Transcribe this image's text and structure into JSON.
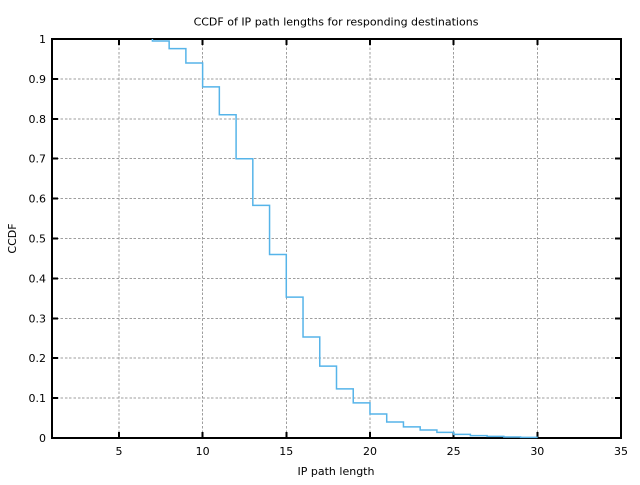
{
  "chart_data": {
    "type": "line",
    "subtype": "ccdf-step",
    "title": "CCDF of IP path lengths for responding destinations",
    "xlabel": "IP path length",
    "ylabel": "CCDF",
    "xlim": [
      1,
      35
    ],
    "ylim": [
      0,
      1
    ],
    "xticks": [
      5,
      10,
      15,
      20,
      25,
      30,
      35
    ],
    "yticks": [
      0,
      0.1,
      0.2,
      0.3,
      0.4,
      0.5,
      0.6,
      0.7,
      0.8,
      0.9,
      1
    ],
    "ytick_labels": [
      "0",
      "0.1",
      "0.2",
      "0.3",
      "0.4",
      "0.5",
      "0.6",
      "0.7",
      "0.8",
      "0.9",
      "1"
    ],
    "grid": true,
    "legend": "none",
    "line_color": "#56b4e9",
    "grid_color": "#9e9e9e",
    "axis_color": "#000000",
    "series": [
      {
        "name": "CCDF of IP path lengths",
        "start": [
          7,
          1.0
        ],
        "x": [
          7,
          8,
          9,
          10,
          11,
          12,
          13,
          14,
          15,
          16,
          17,
          18,
          19,
          20,
          21,
          22,
          23,
          24,
          25,
          26,
          27,
          28,
          29,
          30
        ],
        "ccdf": [
          0.995,
          0.976,
          0.94,
          0.88,
          0.81,
          0.7,
          0.583,
          0.46,
          0.353,
          0.253,
          0.18,
          0.123,
          0.088,
          0.06,
          0.04,
          0.028,
          0.02,
          0.014,
          0.009,
          0.006,
          0.004,
          0.0025,
          0.0015,
          0.001
        ]
      }
    ]
  }
}
